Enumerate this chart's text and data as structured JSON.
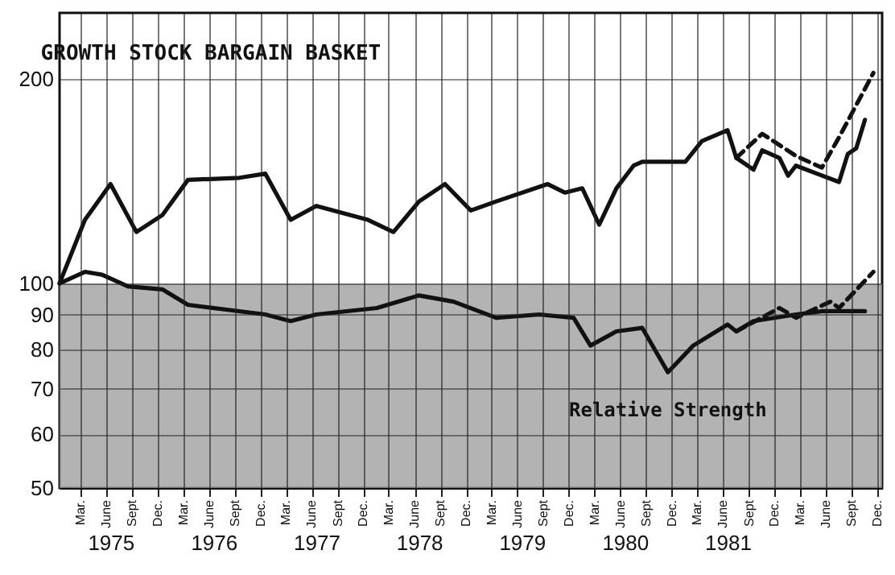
{
  "chart_data": {
    "type": "line",
    "title": "GROWTH STOCK BARGAIN BASKET",
    "xlim": [
      "1975-01-01",
      "1983-01-01"
    ],
    "xticks": [
      {
        "value": "1975-03-15",
        "label": "Mar."
      },
      {
        "value": "1975-06-15",
        "label": "June"
      },
      {
        "value": "1975-09-15",
        "label": "Sept"
      },
      {
        "value": "1975-12-15",
        "label": "Dec."
      },
      {
        "value": "1976-03-15",
        "label": "Mar."
      },
      {
        "value": "1976-06-15",
        "label": "June"
      },
      {
        "value": "1976-09-15",
        "label": "Sept"
      },
      {
        "value": "1976-12-15",
        "label": "Dec."
      },
      {
        "value": "1977-03-15",
        "label": "Mar."
      },
      {
        "value": "1977-06-15",
        "label": "June"
      },
      {
        "value": "1977-09-15",
        "label": "Sept"
      },
      {
        "value": "1977-12-15",
        "label": "Dec."
      },
      {
        "value": "1978-03-15",
        "label": "Mar."
      },
      {
        "value": "1978-06-15",
        "label": "June"
      },
      {
        "value": "1978-09-15",
        "label": "Sept"
      },
      {
        "value": "1978-12-15",
        "label": "Dec."
      },
      {
        "value": "1979-03-15",
        "label": "Mar."
      },
      {
        "value": "1979-06-15",
        "label": "June"
      },
      {
        "value": "1979-09-15",
        "label": "Sept"
      },
      {
        "value": "1979-12-15",
        "label": "Dec."
      },
      {
        "value": "1980-03-15",
        "label": "Mar."
      },
      {
        "value": "1980-06-15",
        "label": "June"
      },
      {
        "value": "1980-09-15",
        "label": "Sept"
      },
      {
        "value": "1980-12-15",
        "label": "Dec."
      },
      {
        "value": "1981-03-15",
        "label": "Mar."
      },
      {
        "value": "1981-06-15",
        "label": "June"
      },
      {
        "value": "1981-09-15",
        "label": "Sept"
      },
      {
        "value": "1981-12-15",
        "label": "Dec."
      },
      {
        "value": "1982-03-15",
        "label": "Mar."
      },
      {
        "value": "1982-06-15",
        "label": "June"
      },
      {
        "value": "1982-09-15",
        "label": "Sept"
      },
      {
        "value": "1982-12-15",
        "label": "Dec."
      }
    ],
    "x2lim": [
      "1975-01-01",
      "1983-01-01"
    ],
    "x2ticks": [
      {
        "value": "1975-07-01",
        "label": "1975"
      },
      {
        "value": "1976-07-01",
        "label": "1976"
      },
      {
        "value": "1977-07-01",
        "label": "1977"
      },
      {
        "value": "1978-07-01",
        "label": "1978"
      },
      {
        "value": "1979-07-01",
        "label": "1979"
      },
      {
        "value": "1980-07-01",
        "label": "1980"
      },
      {
        "value": "1981-07-01",
        "label": "1981"
      },
      {
        "value": "1982-07-01",
        "label": null
      }
    ],
    "log": "y",
    "ylim": [
      50,
      250
    ],
    "yticks": [
      50,
      60,
      70,
      80,
      90,
      100,
      200
    ],
    "grid": true,
    "bands": [
      {
        "axis": "y",
        "from": 50,
        "to": 100,
        "color": "#9a9a9a"
      }
    ],
    "series": [
      {
        "color": "#111111",
        "line_style": "solid",
        "x": [
          "1975-01",
          "1975-04",
          "1975-07",
          "1975-10",
          "1976-01",
          "1976-04",
          "1976-10",
          "1977-01",
          "1977-04",
          "1977-07",
          "1978-01",
          "1978-04",
          "1978-07",
          "1978-10",
          "1979-01",
          "1979-04",
          "1979-10",
          "1979-12",
          "1980-02",
          "1980-04",
          "1980-06",
          "1980-08",
          "1980-09",
          "1981-02",
          "1981-04",
          "1981-07",
          "1981-08",
          "1981-10",
          "1981-11",
          "1982-01",
          "1982-02",
          "1982-03",
          "1982-08",
          "1982-09",
          "1982-10",
          "1982-11"
        ],
        "values": [
          100,
          124,
          140,
          119,
          126,
          142,
          143,
          145,
          124,
          130,
          124,
          119,
          132,
          140,
          128,
          132,
          140,
          136,
          138,
          122,
          138,
          149,
          151,
          151,
          162,
          168,
          153,
          147,
          157,
          153,
          144,
          149,
          141,
          155,
          158,
          174
        ]
      },
      {
        "color": "#111111",
        "line_style": "dashed",
        "x": [
          "1981-08",
          "1981-11",
          "1982-03",
          "1982-06",
          "1982-08",
          "1982-12"
        ],
        "values": [
          153,
          166,
          154,
          148,
          164,
          204
        ]
      },
      {
        "name": "Relative Strength",
        "color": "#111111",
        "line_style": "solid",
        "x": [
          "1975-01",
          "1975-04",
          "1975-06",
          "1975-09",
          "1976-01",
          "1976-04",
          "1977-01",
          "1977-04",
          "1977-07",
          "1978-02",
          "1978-07",
          "1978-11",
          "1979-04",
          "1979-09",
          "1980-01",
          "1980-03",
          "1980-06",
          "1980-09",
          "1980-12",
          "1981-03",
          "1981-07",
          "1981-08",
          "1981-10",
          "1982-03",
          "1982-06",
          "1982-11"
        ],
        "values": [
          100,
          104,
          103,
          99,
          98,
          93,
          90,
          88,
          90,
          92,
          96,
          94,
          89,
          90,
          89,
          81,
          85,
          86,
          74,
          81,
          87,
          85,
          88,
          90,
          91,
          91
        ]
      },
      {
        "color": "#111111",
        "line_style": "dashed",
        "x": [
          "1981-08",
          "1982-01",
          "1982-03",
          "1982-07",
          "1982-08",
          "1982-12"
        ],
        "values": [
          85,
          92,
          89,
          94,
          92,
          104
        ]
      }
    ]
  }
}
